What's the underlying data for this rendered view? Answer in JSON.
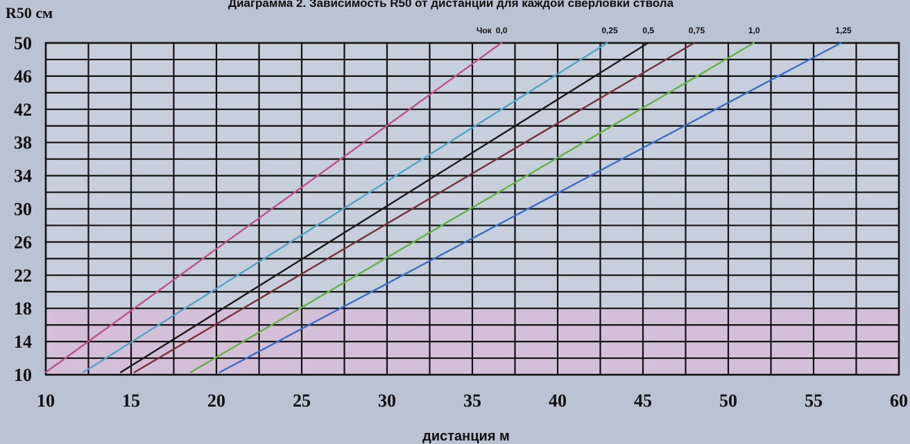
{
  "chart_data": {
    "type": "line",
    "title": "Диаграмма 2. Зависимость R50 от дистанции для каждой сверловки ствола",
    "ylabel": "R50 см",
    "xlabel": "дистанция м",
    "xlim": [
      10,
      60
    ],
    "ylim": [
      10,
      50
    ],
    "x_ticks": [
      "10",
      "15",
      "20",
      "25",
      "30",
      "35",
      "40",
      "45",
      "50",
      "55",
      "60"
    ],
    "y_ticks": [
      "10",
      "14",
      "18",
      "22",
      "26",
      "30",
      "34",
      "38",
      "42",
      "46",
      "50"
    ],
    "grid": true,
    "highlight_band": {
      "y_from": 10,
      "y_to": 18,
      "color": "#d6bcd8"
    },
    "series_prefix": "Чок",
    "series": [
      {
        "name": "0,0",
        "color": "#c0508c",
        "points": [
          [
            10,
            10.3
          ],
          [
            36.7,
            50
          ]
        ]
      },
      {
        "name": "0,25",
        "color": "#4fa6c4",
        "points": [
          [
            12.2,
            10.3
          ],
          [
            42.9,
            50
          ]
        ]
      },
      {
        "name": "0,5",
        "color": "#1a1a1a",
        "points": [
          [
            14.4,
            10.3
          ],
          [
            45.3,
            50
          ]
        ]
      },
      {
        "name": "0,75",
        "color": "#7a2e3a",
        "points": [
          [
            15.2,
            10.3
          ],
          [
            48.0,
            50
          ]
        ]
      },
      {
        "name": "1,0",
        "color": "#66b044",
        "points": [
          [
            18.5,
            10.3
          ],
          [
            51.5,
            50
          ]
        ]
      },
      {
        "name": "1,25",
        "color": "#3d6cc7",
        "points": [
          [
            20.2,
            10.3
          ],
          [
            56.6,
            50
          ]
        ]
      }
    ]
  }
}
